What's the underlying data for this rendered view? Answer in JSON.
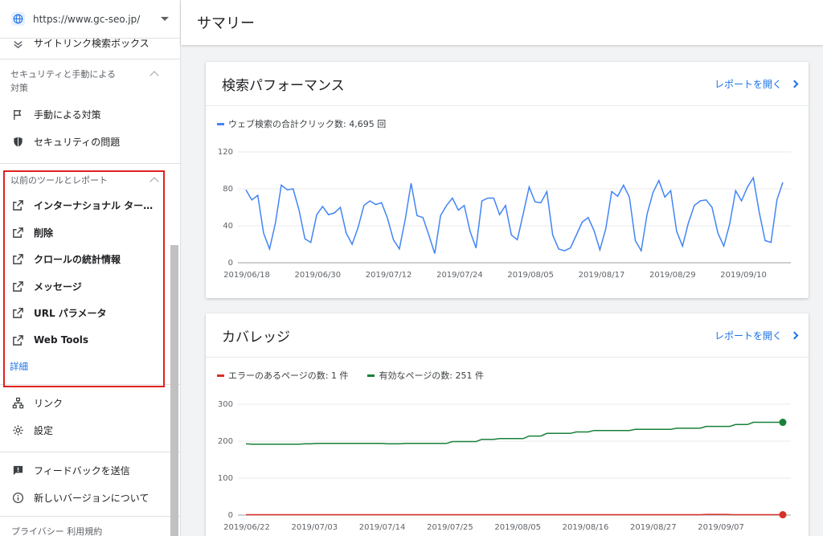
{
  "property": {
    "url": "https://www.gc-seo.jp/"
  },
  "sidebar": {
    "partial_item": "サイトリンク検索ボックス",
    "security_section": {
      "title": "セキュリティと手動による対策",
      "items": [
        {
          "label": "手動による対策",
          "icon": "flag-icon"
        },
        {
          "label": "セキュリティの問題",
          "icon": "shield-icon"
        }
      ]
    },
    "legacy_section": {
      "title": "以前のツールとレポート",
      "items": [
        {
          "label": "インターナショナル ター…",
          "icon": "external-link-icon"
        },
        {
          "label": "削除",
          "icon": "external-link-icon"
        },
        {
          "label": "クロールの統計情報",
          "icon": "external-link-icon"
        },
        {
          "label": "メッセージ",
          "icon": "external-link-icon"
        },
        {
          "label": "URL パラメータ",
          "icon": "external-link-icon"
        },
        {
          "label": "Web Tools",
          "icon": "external-link-icon"
        }
      ],
      "more": "詳細"
    },
    "links_label": "リンク",
    "settings_label": "設定",
    "feedback_label": "フィードバックを送信",
    "about_label": "新しいバージョンについて",
    "footer_partial": "プライバシー 利用規約",
    "highlight_color": "#e02020"
  },
  "header": {
    "title": "サマリー"
  },
  "performance": {
    "title": "検索パフォーマンス",
    "report_link": "レポートを開く",
    "legend": "ウェブ検索の合計クリック数: 4,695 回",
    "color": "#4285f4"
  },
  "coverage": {
    "title": "カバレッジ",
    "report_link": "レポートを開く",
    "legend_error": "エラーのあるページの数: 1 件",
    "legend_valid": "有効なページの数: 251 件",
    "error_color": "#d93025",
    "valid_color": "#188038"
  },
  "chart_data": [
    {
      "type": "line",
      "title": "検索パフォーマンス",
      "ylim": [
        0,
        120
      ],
      "yticks": [
        "0",
        "40",
        "80",
        "120"
      ],
      "xticks": [
        "2019/06/18",
        "2019/06/30",
        "2019/07/12",
        "2019/07/24",
        "2019/08/05",
        "2019/08/17",
        "2019/08/29",
        "2019/09/10"
      ],
      "series": [
        {
          "name": "ウェブ検索の合計クリック数: 4,695 回",
          "values": [
            79,
            68,
            73,
            32,
            15,
            43,
            84,
            79,
            80,
            57,
            26,
            22,
            52,
            61,
            52,
            54,
            60,
            32,
            20,
            38,
            62,
            67,
            63,
            65,
            48,
            25,
            15,
            47,
            86,
            51,
            49,
            30,
            10,
            51,
            62,
            70,
            57,
            62,
            34,
            16,
            67,
            70,
            70,
            52,
            62,
            30,
            25,
            53,
            82,
            66,
            65,
            77,
            30,
            15,
            13,
            16,
            30,
            44,
            49,
            35,
            14,
            37,
            77,
            72,
            84,
            71,
            24,
            13,
            53,
            76,
            89,
            71,
            78,
            34,
            18,
            43,
            62,
            67,
            68,
            60,
            32,
            18,
            42,
            78,
            67,
            82,
            92,
            55,
            24,
            22,
            68,
            87
          ]
        }
      ]
    },
    {
      "type": "line",
      "title": "カバレッジ",
      "ylim": [
        0,
        300
      ],
      "yticks": [
        "0",
        "100",
        "200",
        "300"
      ],
      "xticks": [
        "2019/06/22",
        "2019/07/03",
        "2019/07/14",
        "2019/07/25",
        "2019/08/05",
        "2019/08/16",
        "2019/08/27",
        "2019/09/07"
      ],
      "series": [
        {
          "name": "エラーのあるページの数: 1 件",
          "values": [
            1,
            1,
            1,
            1,
            1,
            1,
            1,
            1,
            1,
            1,
            1,
            1,
            1,
            1,
            1,
            1,
            1,
            1,
            1,
            1,
            1,
            1,
            1,
            1,
            1,
            1,
            1,
            1,
            1,
            1,
            1,
            1,
            1,
            1,
            1,
            1,
            1,
            1,
            1,
            1,
            1,
            1,
            1,
            1,
            1,
            1,
            1,
            1,
            1,
            1,
            1,
            1,
            1,
            1,
            1,
            1,
            1,
            1,
            1,
            1,
            1,
            1,
            1,
            1,
            1,
            1,
            1,
            1,
            1,
            1,
            1,
            1,
            1,
            2,
            2,
            2,
            2,
            1,
            1,
            1,
            1,
            1,
            1,
            1,
            1,
            1
          ]
        },
        {
          "name": "有効なページの数: 251 件",
          "values": [
            193,
            192,
            192,
            192,
            192,
            192,
            192,
            192,
            192,
            192,
            193,
            193,
            194,
            194,
            194,
            194,
            194,
            194,
            194,
            194,
            194,
            194,
            194,
            194,
            193,
            193,
            193,
            194,
            194,
            194,
            194,
            194,
            194,
            194,
            194,
            199,
            199,
            199,
            199,
            199,
            205,
            205,
            205,
            207,
            207,
            207,
            207,
            207,
            214,
            214,
            214,
            221,
            221,
            221,
            221,
            221,
            225,
            225,
            225,
            229,
            229,
            229,
            229,
            229,
            229,
            229,
            232,
            232,
            232,
            232,
            232,
            232,
            232,
            235,
            235,
            235,
            235,
            235,
            240,
            240,
            240,
            240,
            240,
            245,
            245,
            245,
            251,
            251,
            251,
            251,
            251,
            251
          ]
        }
      ]
    }
  ]
}
